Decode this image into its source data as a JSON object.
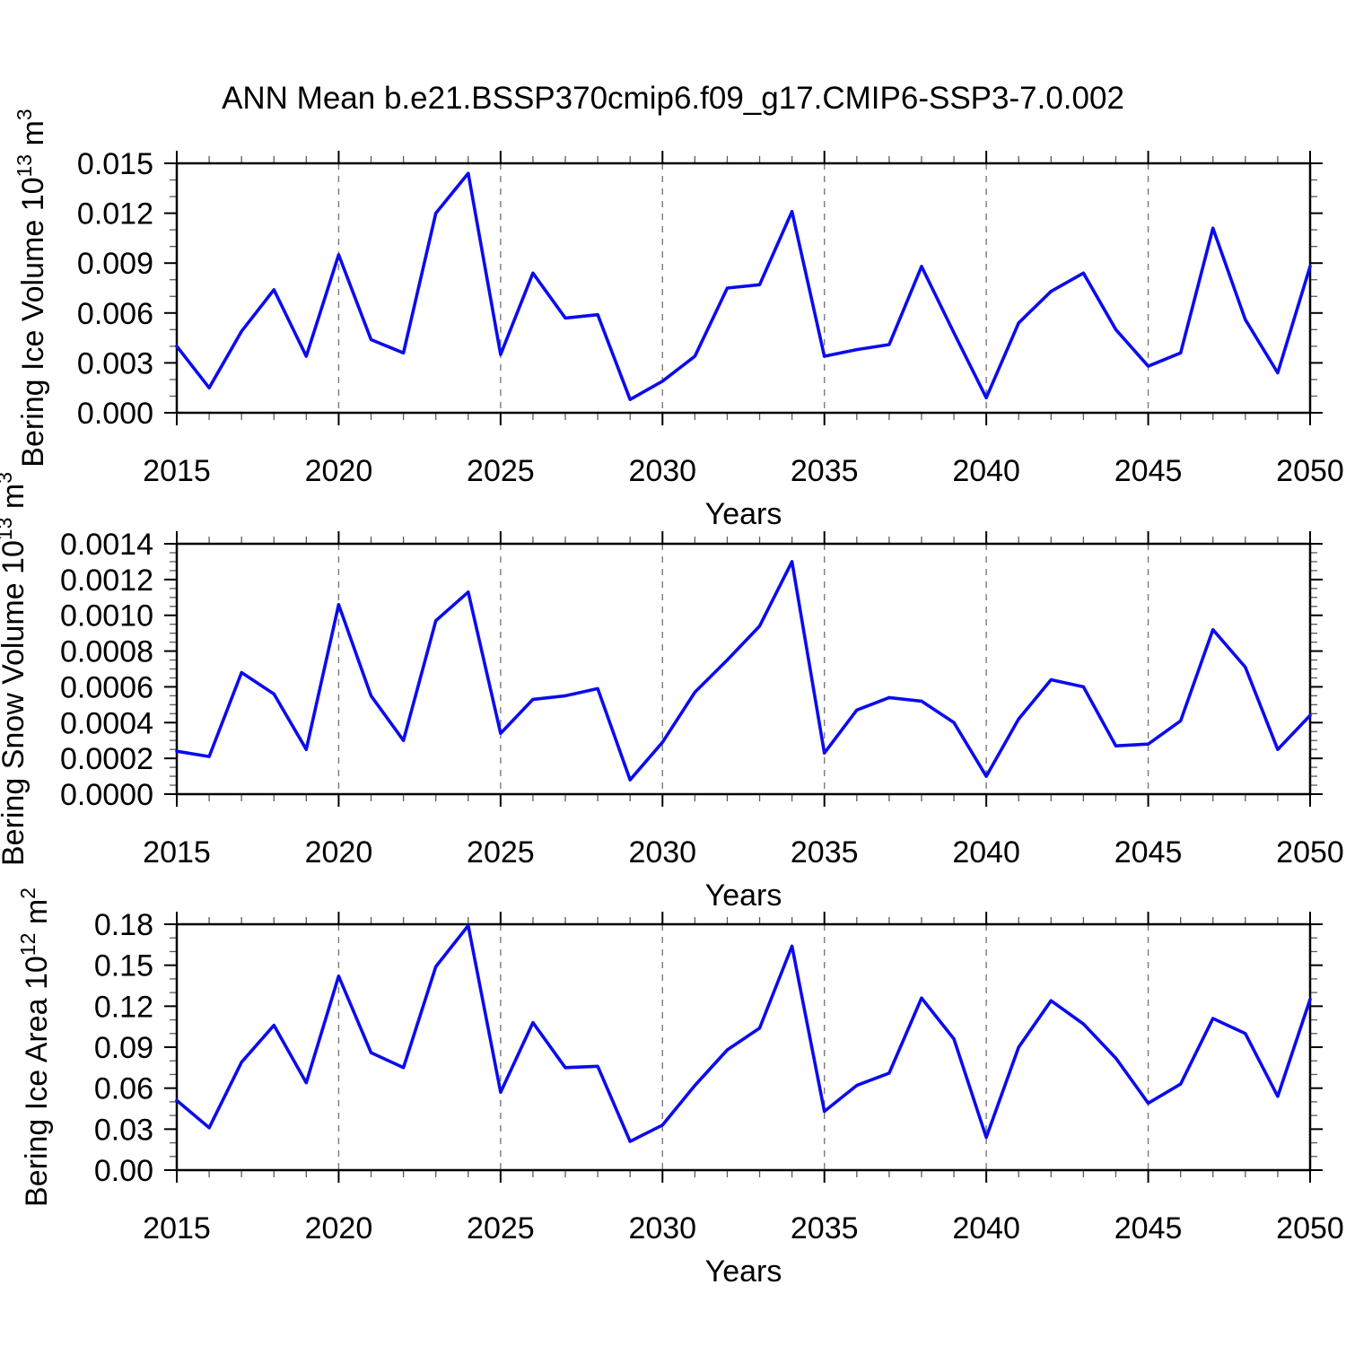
{
  "page": {
    "title": "ANN Mean b.e21.BSSP370cmip6.f09_g17.CMIP6-SSP3-7.0.002",
    "background": "#ffffff"
  },
  "colors": {
    "line": "#0b0bee",
    "axis": "#000000",
    "minor_tick": "#5a5a5a",
    "grid": "#7a7a7a",
    "text": "#000000"
  },
  "chart_data": [
    {
      "id": "ice-volume",
      "type": "line",
      "xlabel": "Years",
      "ylabel_plain": "Bering Ice Volume 10^13 m^3",
      "ylabel_runs": [
        {
          "t": "Bering Ice Volume 10"
        },
        {
          "t": "13",
          "sup": true
        },
        {
          "t": " m"
        },
        {
          "t": "3",
          "sup": true
        }
      ],
      "x_range": [
        2015,
        2050
      ],
      "x_major_every": 5,
      "grid_x": [
        2020,
        2025,
        2030,
        2035,
        2040,
        2045
      ],
      "xticks": [
        {
          "label": "2015",
          "value": 2015
        },
        {
          "label": "2020",
          "value": 2020
        },
        {
          "label": "2025",
          "value": 2025
        },
        {
          "label": "2030",
          "value": 2030
        },
        {
          "label": "2035",
          "value": 2035
        },
        {
          "label": "2040",
          "value": 2040
        },
        {
          "label": "2045",
          "value": 2045
        },
        {
          "label": "2050",
          "value": 2050
        }
      ],
      "ylim": [
        0,
        0.015
      ],
      "y_minor_per_major": 2,
      "yticks": [
        {
          "label": "0.000",
          "value": 0.0
        },
        {
          "label": "0.003",
          "value": 0.003
        },
        {
          "label": "0.006",
          "value": 0.006
        },
        {
          "label": "0.009",
          "value": 0.009
        },
        {
          "label": "0.012",
          "value": 0.012
        },
        {
          "label": "0.015",
          "value": 0.015
        }
      ],
      "x": [
        2015,
        2016,
        2017,
        2018,
        2019,
        2020,
        2021,
        2022,
        2023,
        2024,
        2025,
        2026,
        2027,
        2028,
        2029,
        2030,
        2031,
        2032,
        2033,
        2034,
        2035,
        2036,
        2037,
        2038,
        2039,
        2040,
        2041,
        2042,
        2043,
        2044,
        2045,
        2046,
        2047,
        2048,
        2049,
        2050
      ],
      "values": [
        0.004,
        0.0015,
        0.0049,
        0.0074,
        0.0034,
        0.0095,
        0.0044,
        0.0036,
        0.012,
        0.0144,
        0.0035,
        0.0084,
        0.0057,
        0.0059,
        0.0008,
        0.0019,
        0.0034,
        0.0075,
        0.0077,
        0.0121,
        0.0034,
        0.0038,
        0.0041,
        0.0088,
        0.0048,
        0.0009,
        0.0054,
        0.0073,
        0.0084,
        0.005,
        0.0028,
        0.0036,
        0.0111,
        0.0056,
        0.0024,
        0.0088
      ]
    },
    {
      "id": "snow-volume",
      "type": "line",
      "xlabel": "Years",
      "ylabel_plain": "Bering Snow Volume 10^13 m^3",
      "ylabel_runs": [
        {
          "t": "Bering Snow Volume 10"
        },
        {
          "t": "13",
          "sup": true
        },
        {
          "t": " m"
        },
        {
          "t": "3",
          "sup": true
        }
      ],
      "x_range": [
        2015,
        2050
      ],
      "x_major_every": 5,
      "grid_x": [
        2020,
        2025,
        2030,
        2035,
        2040,
        2045
      ],
      "xticks": [
        {
          "label": "2015",
          "value": 2015
        },
        {
          "label": "2020",
          "value": 2020
        },
        {
          "label": "2025",
          "value": 2025
        },
        {
          "label": "2030",
          "value": 2030
        },
        {
          "label": "2035",
          "value": 2035
        },
        {
          "label": "2040",
          "value": 2040
        },
        {
          "label": "2045",
          "value": 2045
        },
        {
          "label": "2050",
          "value": 2050
        }
      ],
      "ylim": [
        0,
        0.0014
      ],
      "y_minor_per_major": 3,
      "yticks": [
        {
          "label": "0.0000",
          "value": 0.0
        },
        {
          "label": "0.0002",
          "value": 0.0002
        },
        {
          "label": "0.0004",
          "value": 0.0004
        },
        {
          "label": "0.0006",
          "value": 0.0006
        },
        {
          "label": "0.0008",
          "value": 0.0008
        },
        {
          "label": "0.0010",
          "value": 0.001
        },
        {
          "label": "0.0012",
          "value": 0.0012
        },
        {
          "label": "0.0014",
          "value": 0.0014
        }
      ],
      "x": [
        2015,
        2016,
        2017,
        2018,
        2019,
        2020,
        2021,
        2022,
        2023,
        2024,
        2025,
        2026,
        2027,
        2028,
        2029,
        2030,
        2031,
        2032,
        2033,
        2034,
        2035,
        2036,
        2037,
        2038,
        2039,
        2040,
        2041,
        2042,
        2043,
        2044,
        2045,
        2046,
        2047,
        2048,
        2049,
        2050
      ],
      "values": [
        0.00024,
        0.00021,
        0.00068,
        0.00056,
        0.00025,
        0.00106,
        0.00055,
        0.0003,
        0.00097,
        0.00113,
        0.00034,
        0.00053,
        0.00055,
        0.00059,
        8e-05,
        0.00029,
        0.00057,
        0.00075,
        0.00094,
        0.0013,
        0.00023,
        0.00047,
        0.00054,
        0.00052,
        0.0004,
        0.0001,
        0.00042,
        0.00064,
        0.0006,
        0.00027,
        0.00028,
        0.00041,
        0.00092,
        0.00071,
        0.00025,
        0.00044
      ]
    },
    {
      "id": "ice-area",
      "type": "line",
      "xlabel": "Years",
      "ylabel_plain": "Bering Ice Area 10^12 m^2",
      "ylabel_runs": [
        {
          "t": "Bering Ice Area 10"
        },
        {
          "t": "12",
          "sup": true
        },
        {
          "t": " m"
        },
        {
          "t": "2",
          "sup": true
        }
      ],
      "x_range": [
        2015,
        2050
      ],
      "x_major_every": 5,
      "grid_x": [
        2020,
        2025,
        2030,
        2035,
        2040,
        2045
      ],
      "xticks": [
        {
          "label": "2015",
          "value": 2015
        },
        {
          "label": "2020",
          "value": 2020
        },
        {
          "label": "2025",
          "value": 2025
        },
        {
          "label": "2030",
          "value": 2030
        },
        {
          "label": "2035",
          "value": 2035
        },
        {
          "label": "2040",
          "value": 2040
        },
        {
          "label": "2045",
          "value": 2045
        },
        {
          "label": "2050",
          "value": 2050
        }
      ],
      "ylim": [
        0,
        0.18
      ],
      "y_minor_per_major": 2,
      "yticks": [
        {
          "label": "0.00",
          "value": 0.0
        },
        {
          "label": "0.03",
          "value": 0.03
        },
        {
          "label": "0.06",
          "value": 0.06
        },
        {
          "label": "0.09",
          "value": 0.09
        },
        {
          "label": "0.12",
          "value": 0.12
        },
        {
          "label": "0.15",
          "value": 0.15
        },
        {
          "label": "0.18",
          "value": 0.18
        }
      ],
      "x": [
        2015,
        2016,
        2017,
        2018,
        2019,
        2020,
        2021,
        2022,
        2023,
        2024,
        2025,
        2026,
        2027,
        2028,
        2029,
        2030,
        2031,
        2032,
        2033,
        2034,
        2035,
        2036,
        2037,
        2038,
        2039,
        2040,
        2041,
        2042,
        2043,
        2044,
        2045,
        2046,
        2047,
        2048,
        2049,
        2050
      ],
      "values": [
        0.051,
        0.031,
        0.079,
        0.106,
        0.064,
        0.142,
        0.086,
        0.075,
        0.149,
        0.179,
        0.057,
        0.108,
        0.075,
        0.076,
        0.021,
        0.033,
        0.062,
        0.088,
        0.104,
        0.164,
        0.043,
        0.062,
        0.071,
        0.126,
        0.096,
        0.024,
        0.09,
        0.124,
        0.107,
        0.082,
        0.049,
        0.063,
        0.111,
        0.1,
        0.054,
        0.125
      ]
    }
  ]
}
